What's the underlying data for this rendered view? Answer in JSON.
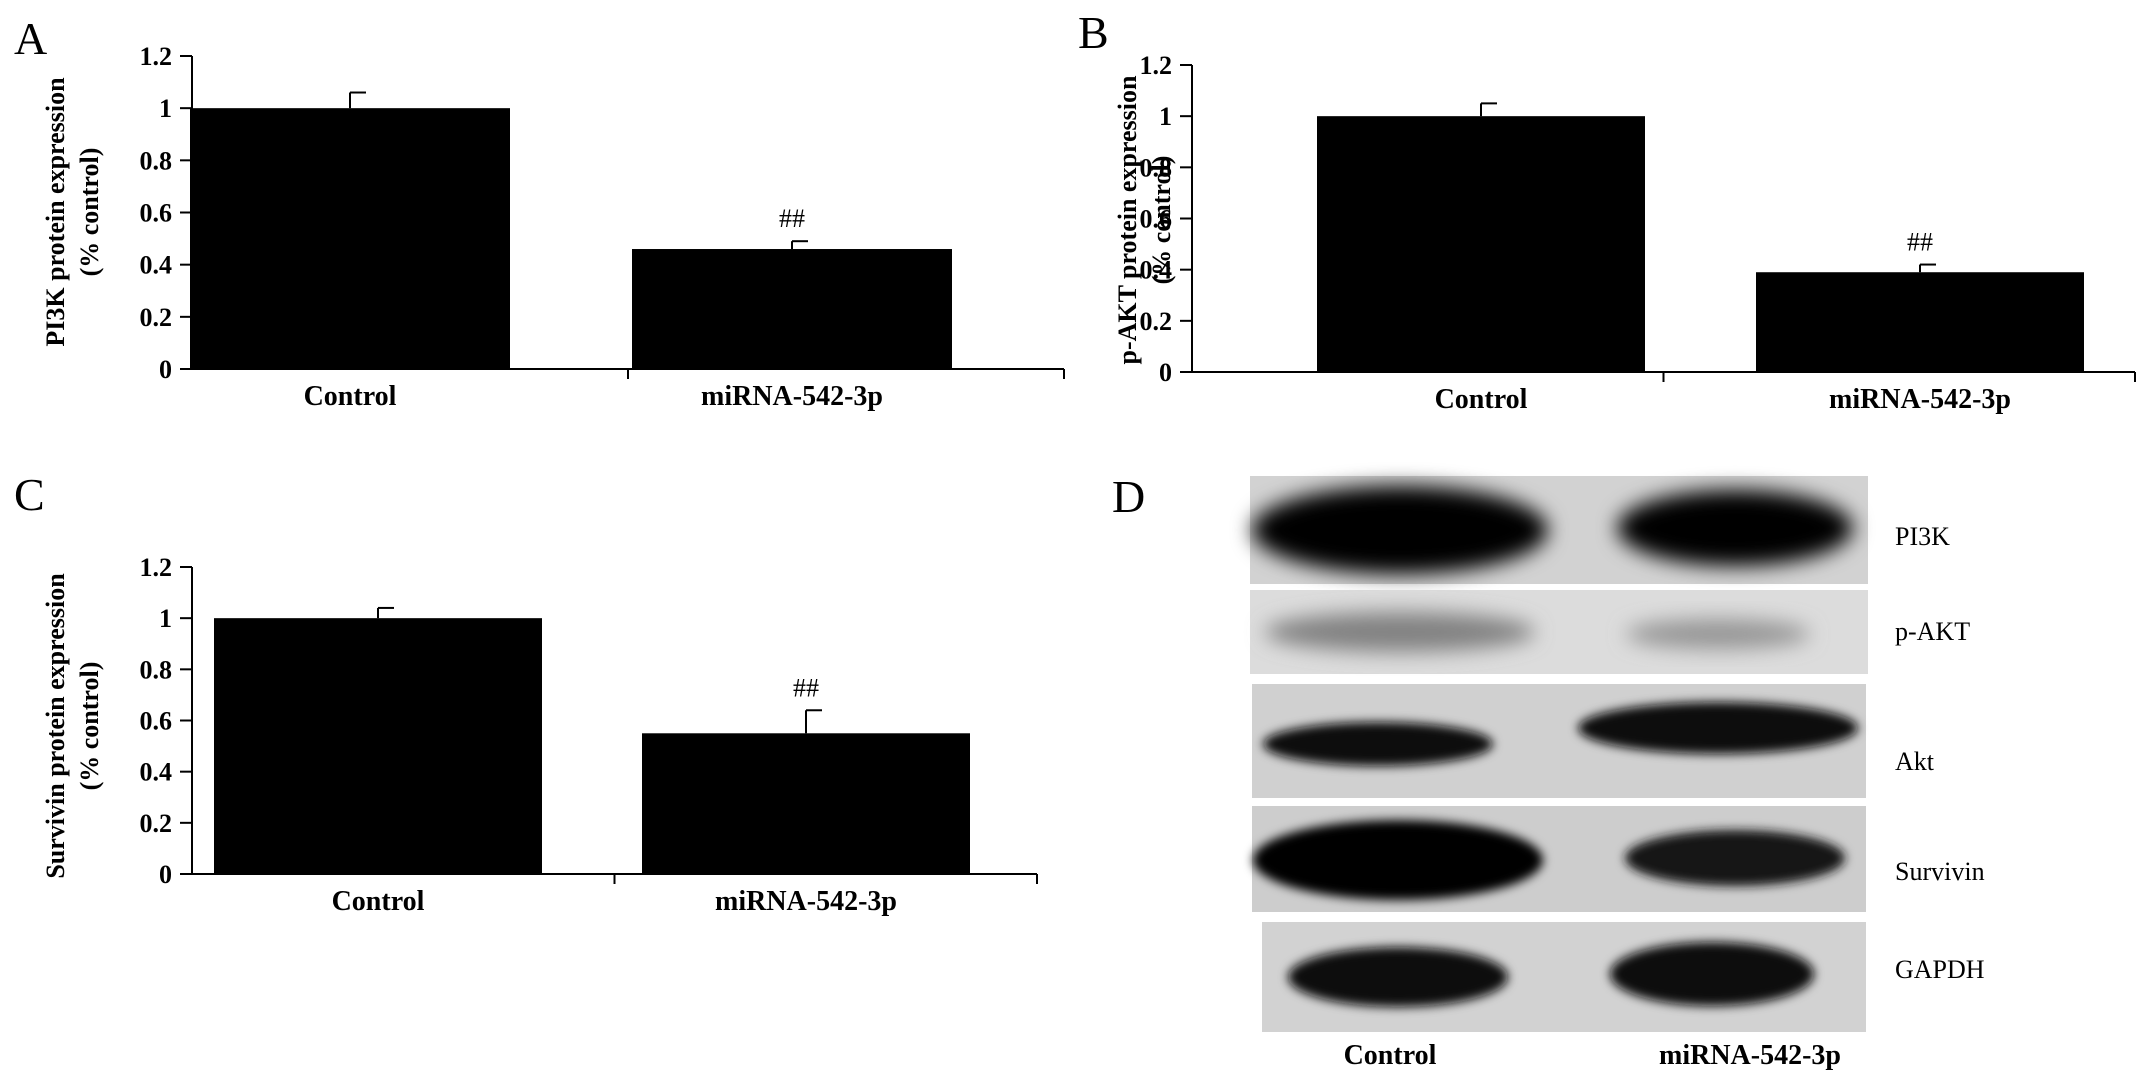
{
  "panels": [
    {
      "letter": "A"
    },
    {
      "letter": "B"
    },
    {
      "letter": "C"
    },
    {
      "letter": "D"
    }
  ],
  "colors": {
    "bar": "#000000",
    "axis": "#000000",
    "background": "#ffffff"
  },
  "chart_data": [
    {
      "type": "bar",
      "panel": "A",
      "categories": [
        "Control",
        "miRNA-542-3p"
      ],
      "values": [
        1.0,
        0.46
      ],
      "error": [
        0.06,
        0.03
      ],
      "annotations": [
        "",
        "##"
      ],
      "ylabel": [
        "PI3K protein expression",
        "(% control)"
      ],
      "ylim": [
        0,
        1.2
      ],
      "yticks": [
        "0",
        "0.2",
        "0.4",
        "0.6",
        "0.8",
        "1",
        "1.2"
      ],
      "grid": false
    },
    {
      "type": "bar",
      "panel": "B",
      "categories": [
        "Control",
        "miRNA-542-3p"
      ],
      "values": [
        1.0,
        0.39
      ],
      "error": [
        0.05,
        0.03
      ],
      "annotations": [
        "",
        "##"
      ],
      "ylabel": [
        "p-AKT protein expression",
        "(% control)"
      ],
      "ylim": [
        0,
        1.2
      ],
      "yticks": [
        "0",
        "0.2",
        "0.4",
        "0.6",
        "0.8",
        "1",
        "1.2"
      ],
      "grid": false
    },
    {
      "type": "bar",
      "panel": "C",
      "categories": [
        "Control",
        "miRNA-542-3p"
      ],
      "values": [
        1.0,
        0.55
      ],
      "error": [
        0.04,
        0.09
      ],
      "annotations": [
        "",
        "##"
      ],
      "ylabel": [
        "Survivin protein expression",
        "(% control)"
      ],
      "ylim": [
        0,
        1.2
      ],
      "yticks": [
        "0",
        "0.2",
        "0.4",
        "0.6",
        "0.8",
        "1",
        "1.2"
      ],
      "grid": false
    }
  ],
  "blot": {
    "rows": [
      {
        "label": "PI3K",
        "intensity": [
          1.0,
          1.0
        ]
      },
      {
        "label": "p-AKT",
        "intensity": [
          0.35,
          0.25
        ]
      },
      {
        "label": "Akt",
        "intensity": [
          0.95,
          0.95
        ]
      },
      {
        "label": "Survivin",
        "intensity": [
          1.0,
          0.9
        ]
      },
      {
        "label": "GAPDH",
        "intensity": [
          0.95,
          0.95
        ]
      }
    ],
    "lanes": [
      "Control",
      "miRNA-542-3p"
    ]
  }
}
